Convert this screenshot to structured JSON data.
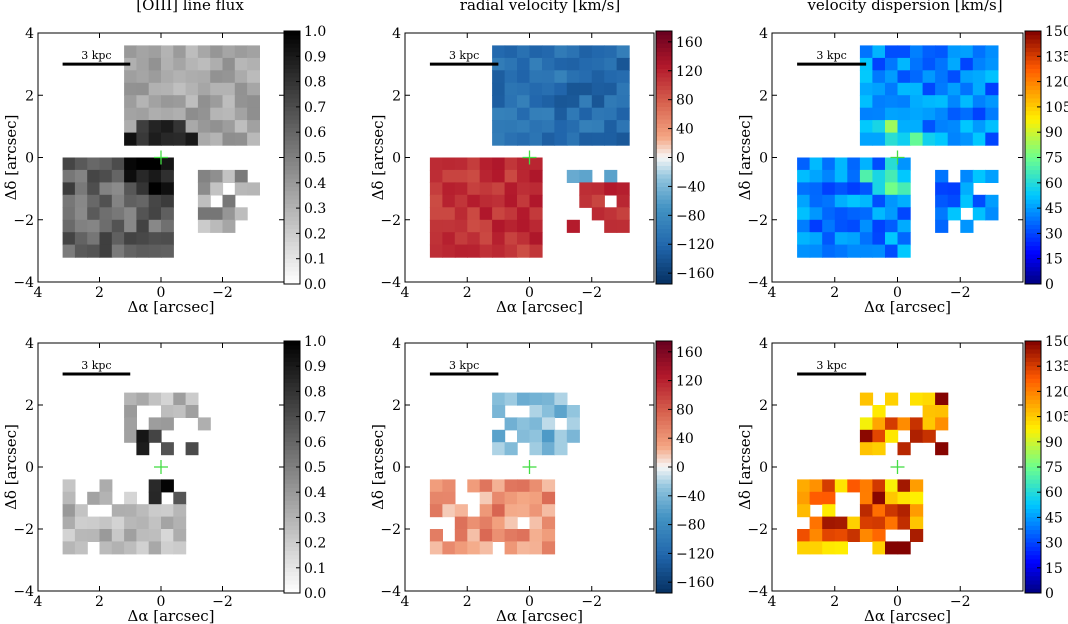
{
  "column_titles": [
    "[OIII] line flux",
    "radial velocity [km/s]",
    "velocity dispersion [km/s]"
  ],
  "scale_bar_label": "3 kpc",
  "center_marker": "plus-marker",
  "axes": {
    "xlabel": "Δα [arcsec]",
    "ylabel": "Δδ [arcsec]",
    "xlim": [
      4,
      -4
    ],
    "ylim": [
      -4,
      4
    ],
    "xticks": [
      4,
      2,
      0,
      -2
    ],
    "yticks": [
      4,
      2,
      0,
      -2,
      -4
    ]
  },
  "colorbars": {
    "flux": {
      "ticks": [
        "1.0",
        "0.9",
        "0.8",
        "0.7",
        "0.6",
        "0.5",
        "0.4",
        "0.3",
        "0.2",
        "0.1",
        "0.0"
      ],
      "range": [
        0,
        1
      ]
    },
    "velocity": {
      "ticks": [
        "160",
        "120",
        "80",
        "40",
        "0",
        "−40",
        "−80",
        "−120",
        "−160"
      ],
      "range": [
        -175,
        175
      ]
    },
    "dispersion": {
      "ticks": [
        "150",
        "135",
        "120",
        "105",
        "90",
        "75",
        "60",
        "45",
        "30",
        "15",
        "0"
      ],
      "range": [
        0,
        150
      ]
    }
  },
  "colors": {
    "center_marker": "#44dd44",
    "text": "#000000",
    "background": "#ffffff"
  },
  "chart_data": [
    {
      "type": "heatmap",
      "row": 1,
      "quantity": "flux",
      "cmap": "gray_r",
      "title": "[OIII] line flux",
      "xlabel": "Δα [arcsec]",
      "ylabel": "Δδ [arcsec]",
      "pixel_size_arcsec": 0.4,
      "morphology": "two bright cones: NE (upper right, 0.2-0.45) and SE (lower left, 0.5-0.85), bright knots near center",
      "vrange": [
        0,
        1
      ]
    },
    {
      "type": "heatmap",
      "row": 1,
      "quantity": "velocity",
      "cmap": "RdBu_r",
      "title": "radial velocity [km/s]",
      "xlabel": "Δα [arcsec]",
      "ylabel": "Δδ [arcsec]",
      "pixel_size_arcsec": 0.4,
      "morphology": "NE region blueshifted (-80 to -140 km/s), SW region redshifted (+100 to +130 km/s)",
      "vrange": [
        -175,
        175
      ]
    },
    {
      "type": "heatmap",
      "row": 1,
      "quantity": "dispersion",
      "cmap": "jet",
      "title": "velocity dispersion [km/s]",
      "xlabel": "Δα [arcsec]",
      "ylabel": "Δδ [arcsec]",
      "pixel_size_arcsec": 0.4,
      "morphology": "mostly 25-55 km/s, higher (60-100) near center",
      "vrange": [
        0,
        150
      ]
    },
    {
      "type": "heatmap",
      "row": 2,
      "quantity": "flux",
      "cmap": "gray_r",
      "xlabel": "Δα [arcsec]",
      "ylabel": "Δδ [arcsec]",
      "pixel_size_arcsec": 0.4,
      "morphology": "fainter broad component, brightest near nucleus",
      "vrange": [
        0,
        1
      ]
    },
    {
      "type": "heatmap",
      "row": 2,
      "quantity": "velocity",
      "cmap": "RdBu_r",
      "xlabel": "Δα [arcsec]",
      "ylabel": "Δδ [arcsec]",
      "pixel_size_arcsec": 0.4,
      "morphology": "weak velocities, -20 to -60 km/s NE, +20 to +80 km/s SW",
      "vrange": [
        -175,
        175
      ]
    },
    {
      "type": "heatmap",
      "row": 2,
      "quantity": "dispersion",
      "cmap": "jet",
      "xlabel": "Δα [arcsec]",
      "ylabel": "Δδ [arcsec]",
      "pixel_size_arcsec": 0.4,
      "morphology": "high dispersion 95-150 km/s",
      "vrange": [
        0,
        150
      ]
    }
  ]
}
